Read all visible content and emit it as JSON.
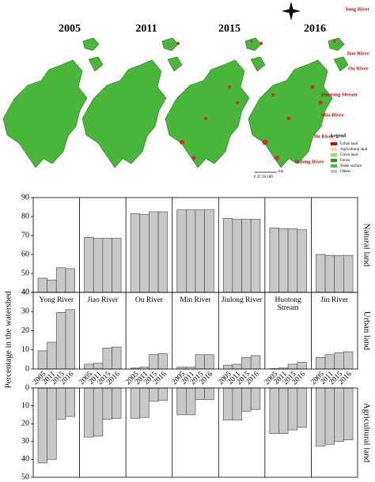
{
  "map": {
    "years": [
      "2005",
      "2011",
      "2015",
      "2016"
    ],
    "rivers": [
      "Yong River",
      "Jiao River",
      "Ou River",
      "Huotong Stream",
      "Min River",
      "Jin River",
      "Jiulong River"
    ],
    "legend": {
      "title": "Legend",
      "items": [
        "Urban land",
        "Agricultural land",
        "Green land",
        "Forest",
        "Water surface",
        "Others"
      ]
    },
    "scale": "0  25 50     100",
    "scale_unit": "km"
  },
  "chart_data": {
    "type": "bar",
    "y_label": "Percentage in the watershed",
    "categories": [
      "Yong River",
      "Jiao River",
      "Ou River",
      "Min River",
      "Jiulong River",
      "Huotong Stream",
      "Jin River"
    ],
    "x": [
      "2005",
      "2011",
      "2015",
      "2016"
    ],
    "color": "#c8c8c8",
    "panels": [
      {
        "title": "Natural land",
        "ylim": [
          40,
          90
        ],
        "yticks": [
          40,
          50,
          60,
          70,
          80,
          90
        ],
        "values": [
          [
            47.5,
            46.5,
            53,
            52.5
          ],
          [
            69,
            68.5,
            68.5,
            68.5
          ],
          [
            81.5,
            81,
            82.5,
            82.5
          ],
          [
            83.5,
            83.5,
            83.5,
            83.5
          ],
          [
            79,
            78.5,
            78.5,
            78.5
          ],
          [
            74,
            73.5,
            73.5,
            73
          ],
          [
            60,
            59.5,
            59.5,
            59.5
          ]
        ]
      },
      {
        "title": "Urban land",
        "ylim": [
          0,
          40
        ],
        "yticks": [
          0,
          10,
          20,
          30,
          40
        ],
        "values": [
          [
            9.5,
            14,
            29.5,
            31
          ],
          [
            2.5,
            3,
            11,
            11.5
          ],
          [
            0.5,
            1,
            7.5,
            8
          ],
          [
            1,
            1,
            7.5,
            7.5
          ],
          [
            2,
            2.5,
            6,
            7
          ],
          [
            0.2,
            0.5,
            2.5,
            3.5
          ],
          [
            6,
            7.5,
            8.5,
            9
          ]
        ]
      },
      {
        "title": "Agricultural land",
        "ylim": [
          0,
          50
        ],
        "yticks": [
          0,
          10,
          20,
          30,
          40,
          50
        ],
        "y_inverted": true,
        "values": [
          [
            42,
            40,
            17.5,
            16
          ],
          [
            27.5,
            27,
            17.5,
            17
          ],
          [
            17,
            16.5,
            7.5,
            7
          ],
          [
            15,
            15,
            6.5,
            6.5
          ],
          [
            18,
            18,
            13,
            12
          ],
          [
            25.5,
            25.5,
            23.5,
            22
          ],
          [
            32.5,
            31.5,
            30,
            29
          ]
        ]
      }
    ]
  }
}
